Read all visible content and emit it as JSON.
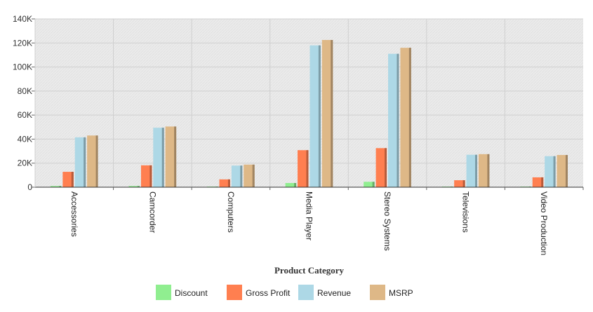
{
  "chart_data": {
    "type": "bar",
    "xlabel": "Product Category",
    "ylabel": "",
    "ylim": [
      0,
      140000
    ],
    "yticks": [
      0,
      20000,
      40000,
      60000,
      80000,
      100000,
      120000,
      140000
    ],
    "ytick_labels": [
      "0",
      "20K",
      "40K",
      "60K",
      "80K",
      "100K",
      "120K",
      "140K"
    ],
    "categories": [
      "Accessories",
      "Camcorder",
      "Computers",
      "Media Player",
      "Stereo Systems",
      "Televisions",
      "Video Production"
    ],
    "series": [
      {
        "name": "Discount",
        "color": "#90ee90",
        "values": [
          1000,
          1000,
          500,
          3500,
          4500,
          500,
          500
        ]
      },
      {
        "name": "Gross Profit",
        "color": "#ff7f50",
        "values": [
          12800,
          18200,
          6500,
          30800,
          32500,
          5800,
          8200
        ]
      },
      {
        "name": "Revenue",
        "color": "#add8e6",
        "values": [
          41500,
          49500,
          18000,
          118000,
          111000,
          27000,
          25800
        ]
      },
      {
        "name": "MSRP",
        "color": "#deb887",
        "values": [
          43000,
          50500,
          18800,
          122500,
          116000,
          27500,
          26800
        ]
      }
    ],
    "grid": true,
    "legend_position": "bottom"
  }
}
